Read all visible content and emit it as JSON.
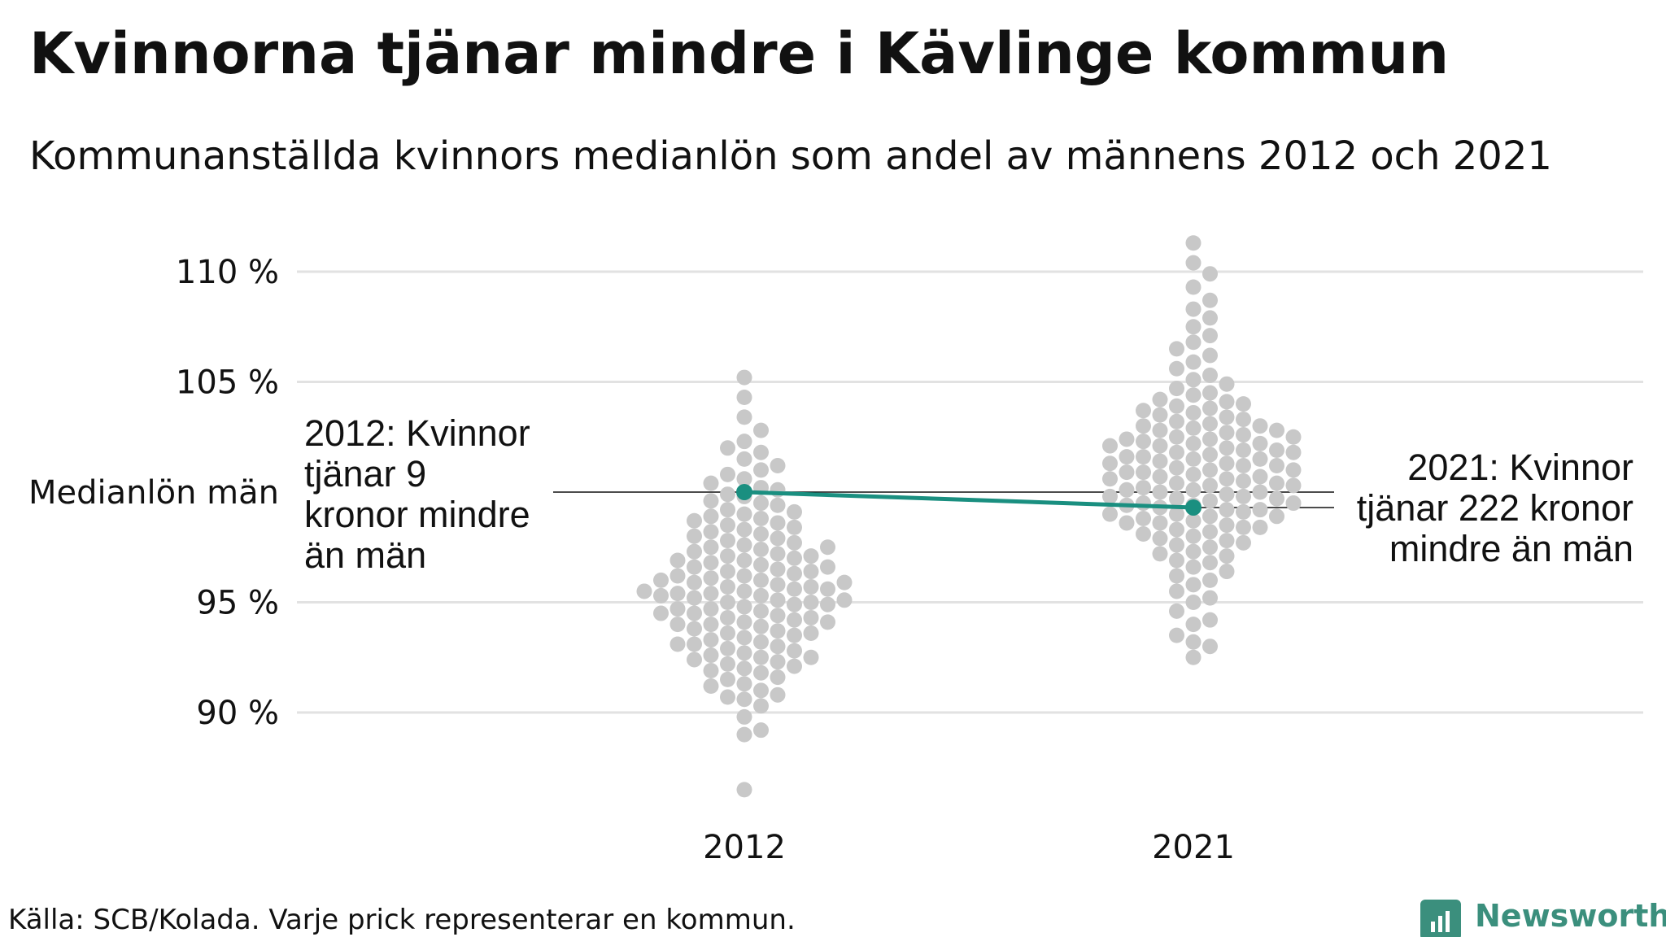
{
  "colors": {
    "dots": "#c8c8c8",
    "highlight": "#1a8f80",
    "grid": "#e2e2e2",
    "baseline": "#111111",
    "brand": "#3b8f7d"
  },
  "footer": {
    "source": "Källa: SCB/Kolada. Varje prick representerar en kommun.",
    "brand_name": "Newsworthy",
    "brand_icon": "newsworthy-logo-icon"
  },
  "chart_data": {
    "type": "scatter",
    "title": "Kvinnorna tjänar mindre i Kävlinge kommun",
    "subtitle": "Kommunanställda kvinnors medianlön som andel av männens 2012 och 2021",
    "xlabel": "",
    "ylabel": "",
    "categories": [
      "2012",
      "2021"
    ],
    "ylim": [
      86,
      112
    ],
    "y_ticks": [
      {
        "value": 110,
        "label": "110 %"
      },
      {
        "value": 105,
        "label": "105 %"
      },
      {
        "value": 100,
        "label": "Medianlön män"
      },
      {
        "value": 95,
        "label": "95 %"
      },
      {
        "value": 90,
        "label": "90 %"
      }
    ],
    "grid": true,
    "reference_line": {
      "value": 100,
      "label": "Medianlön män"
    },
    "series": [
      {
        "category": "2012",
        "values": [
          86.5,
          89.0,
          89.2,
          89.8,
          90.3,
          90.6,
          90.7,
          90.8,
          91.0,
          91.2,
          91.3,
          91.5,
          91.6,
          91.8,
          91.9,
          92.0,
          92.1,
          92.2,
          92.3,
          92.4,
          92.5,
          92.5,
          92.6,
          92.7,
          92.8,
          92.9,
          93.0,
          93.1,
          93.1,
          93.2,
          93.3,
          93.4,
          93.5,
          93.6,
          93.6,
          93.7,
          93.8,
          93.9,
          94.0,
          94.0,
          94.1,
          94.1,
          94.2,
          94.3,
          94.3,
          94.4,
          94.5,
          94.5,
          94.6,
          94.7,
          94.7,
          94.8,
          94.9,
          94.9,
          95.0,
          95.0,
          95.1,
          95.1,
          95.2,
          95.3,
          95.3,
          95.4,
          95.4,
          95.5,
          95.5,
          95.6,
          95.6,
          95.7,
          95.7,
          95.8,
          95.9,
          95.9,
          96.0,
          96.0,
          96.1,
          96.2,
          96.2,
          96.3,
          96.4,
          96.4,
          96.5,
          96.6,
          96.6,
          96.7,
          96.8,
          96.9,
          96.9,
          97.0,
          97.1,
          97.1,
          97.2,
          97.3,
          97.4,
          97.5,
          97.5,
          97.6,
          97.7,
          97.8,
          97.9,
          98.0,
          98.1,
          98.2,
          98.3,
          98.4,
          98.5,
          98.6,
          98.7,
          98.8,
          98.9,
          99.0,
          99.1,
          99.2,
          99.4,
          99.5,
          99.6,
          99.8,
          99.9,
          100.1,
          100.2,
          100.4,
          100.6,
          100.8,
          101.0,
          101.2,
          101.5,
          101.8,
          102.0,
          102.3,
          102.8,
          103.4,
          104.3,
          105.2
        ]
      },
      {
        "category": "2021",
        "values": [
          92.5,
          93.0,
          93.2,
          93.5,
          94.0,
          94.2,
          94.6,
          95.0,
          95.2,
          95.5,
          95.8,
          96.0,
          96.2,
          96.4,
          96.6,
          96.8,
          96.9,
          97.1,
          97.2,
          97.3,
          97.5,
          97.6,
          97.7,
          97.8,
          97.9,
          98.0,
          98.1,
          98.2,
          98.3,
          98.4,
          98.4,
          98.5,
          98.6,
          98.6,
          98.7,
          98.8,
          98.9,
          98.9,
          99.0,
          99.0,
          99.1,
          99.2,
          99.2,
          99.3,
          99.4,
          99.4,
          99.5,
          99.5,
          99.6,
          99.7,
          99.7,
          99.8,
          99.8,
          99.9,
          100.0,
          100.0,
          100.1,
          100.1,
          100.2,
          100.3,
          100.3,
          100.4,
          100.4,
          100.5,
          100.6,
          100.6,
          100.7,
          100.7,
          100.8,
          100.9,
          100.9,
          101.0,
          101.0,
          101.1,
          101.2,
          101.2,
          101.3,
          101.3,
          101.4,
          101.5,
          101.5,
          101.6,
          101.6,
          101.7,
          101.8,
          101.8,
          101.9,
          101.9,
          102.0,
          102.1,
          102.1,
          102.2,
          102.2,
          102.3,
          102.4,
          102.4,
          102.5,
          102.5,
          102.6,
          102.7,
          102.8,
          102.8,
          102.9,
          103.0,
          103.0,
          103.1,
          103.2,
          103.3,
          103.4,
          103.5,
          103.6,
          103.7,
          103.8,
          103.9,
          104.0,
          104.1,
          104.2,
          104.4,
          104.5,
          104.7,
          104.9,
          105.1,
          105.3,
          105.6,
          105.9,
          106.2,
          106.5,
          106.8,
          107.1,
          107.5,
          107.9,
          108.3,
          108.7,
          109.3,
          109.9,
          110.4,
          111.3
        ]
      }
    ],
    "highlight": {
      "name": "Kävlinge",
      "points": [
        {
          "x": "2012",
          "y": 100.0
        },
        {
          "x": "2021",
          "y": 99.3
        }
      ],
      "annotations": [
        {
          "x": "2012",
          "lines": [
            "2012: Kvinnor",
            "tjänar 9",
            "kronor mindre",
            "än män"
          ],
          "align": "left"
        },
        {
          "x": "2021",
          "lines": [
            "2021: Kvinnor",
            "tjänar 222 kronor",
            "mindre än män"
          ],
          "align": "right"
        }
      ]
    }
  }
}
